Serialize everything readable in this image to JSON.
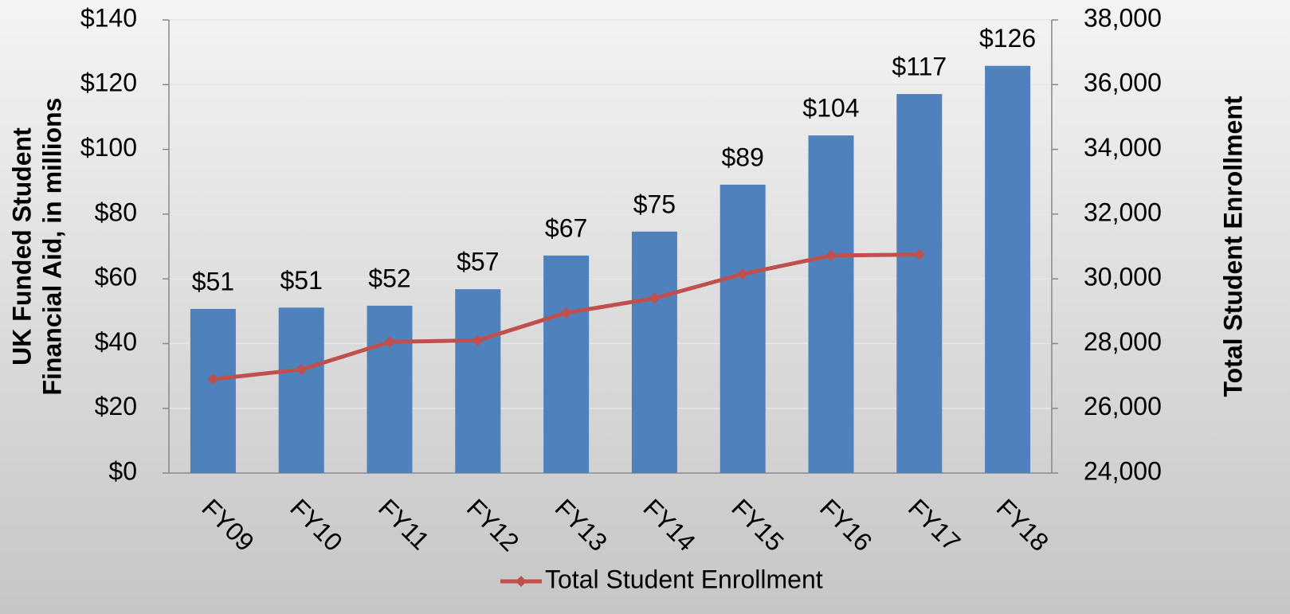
{
  "chart_data": {
    "type": "bar",
    "categories": [
      "FY09",
      "FY10",
      "FY11",
      "FY12",
      "FY13",
      "FY14",
      "FY15",
      "FY16",
      "FY17",
      "FY18"
    ],
    "series": [
      {
        "color": "#4f81bd",
        "values": [
          50.7,
          51.1,
          51.7,
          56.8,
          67.2,
          74.6,
          89.1,
          104.3,
          117.1,
          125.8
        ],
        "value_labels": [
          "$51",
          "$51",
          "$52",
          "$57",
          "$67",
          "$75",
          "$89",
          "$104",
          "$117",
          "$126"
        ]
      },
      {
        "name": "Total Student Enrollment",
        "type": "line",
        "axis": "y2",
        "color": "#c0504d",
        "values": [
          26900,
          27200,
          28050,
          28100,
          28950,
          29400,
          30150,
          30720,
          30750,
          null
        ]
      }
    ],
    "ylabel": [
      "UK Funded Student",
      "Financial Aid, in millions"
    ],
    "y2label": "Total Student Enrollment",
    "ylim": [
      0,
      140
    ],
    "yticks": [
      {
        "value": 0,
        "label": "$0"
      },
      {
        "value": 20,
        "label": "$20"
      },
      {
        "value": 40,
        "label": "$40"
      },
      {
        "value": 60,
        "label": "$60"
      },
      {
        "value": 80,
        "label": "$80"
      },
      {
        "value": 100,
        "label": "$100"
      },
      {
        "value": 120,
        "label": "$120"
      },
      {
        "value": 140,
        "label": "$140"
      }
    ],
    "y2lim": [
      24000,
      38000
    ],
    "y2ticks": [
      {
        "value": 24000,
        "label": "24,000"
      },
      {
        "value": 26000,
        "label": "26,000"
      },
      {
        "value": 28000,
        "label": "28,000"
      },
      {
        "value": 30000,
        "label": "30,000"
      },
      {
        "value": 32000,
        "label": "32,000"
      },
      {
        "value": 34000,
        "label": "34,000"
      },
      {
        "value": 36000,
        "label": "36,000"
      },
      {
        "value": 38000,
        "label": "38,000"
      }
    ],
    "grid": true,
    "legend": "bottom"
  }
}
